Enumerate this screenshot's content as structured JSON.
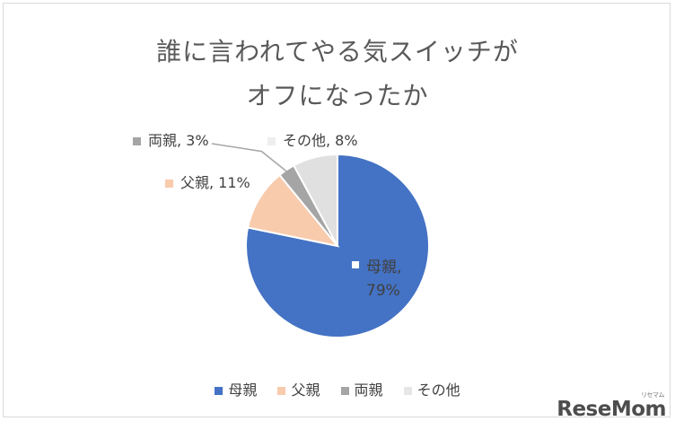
{
  "chart_data": {
    "type": "pie",
    "title_line1": "誰に言われてやる気スイッチが",
    "title_line2": "オフになったか",
    "slices": [
      {
        "name": "母親",
        "value": 79,
        "color": "#4472c4",
        "label_name": "母親,",
        "label_value": "79%"
      },
      {
        "name": "父親",
        "value": 11,
        "color": "#f8cbad",
        "label": "父親, 11%"
      },
      {
        "name": "両親",
        "value": 3,
        "color": "#a5a5a5",
        "label": "両親, 3%"
      },
      {
        "name": "その他",
        "value": 8,
        "color": "#e0e0e0",
        "label": "その他, 8%"
      }
    ],
    "legend": [
      "母親",
      "父親",
      "両親",
      "その他"
    ],
    "legend_position": "bottom"
  },
  "logo": {
    "text": "ReseMom",
    "sub": "リセマム"
  }
}
